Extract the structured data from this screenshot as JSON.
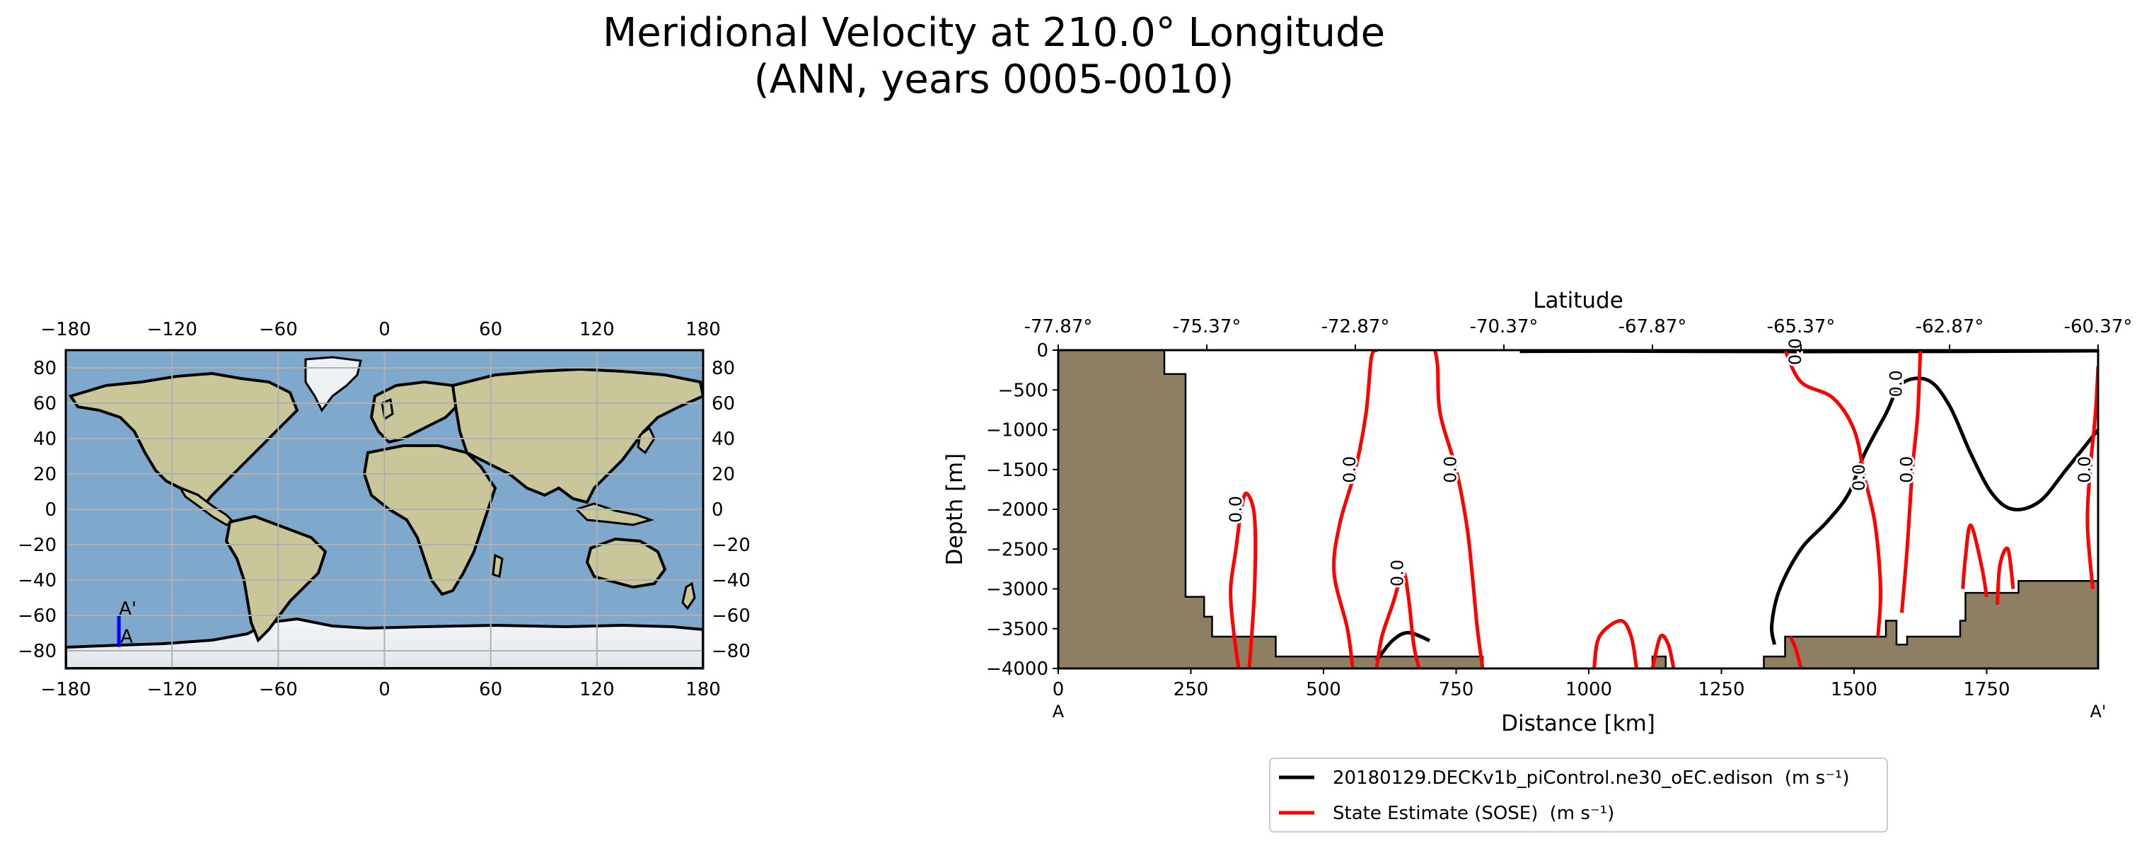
{
  "title_line1": "Meridional Velocity at 210.0° Longitude",
  "title_line2": "(ANN, years 0005-0010)",
  "colors": {
    "ocean": "#7fa9cc",
    "land": "#c9c79a",
    "ice": "#eef2f5",
    "grid": "#b0b0b0",
    "bathymetry": "#8f7f62",
    "model": "#000000",
    "obs": "#ff0000",
    "transect": "#0000ff"
  },
  "chart_data": [
    {
      "type": "map",
      "name": "transect location map",
      "xticks": [
        -180,
        -120,
        -60,
        0,
        60,
        120,
        180
      ],
      "yticks": [
        80,
        60,
        40,
        20,
        0,
        -20,
        -40,
        -60,
        -80
      ],
      "xlim": [
        -180,
        180
      ],
      "ylim": [
        -90,
        90
      ],
      "transect": {
        "start_label": "A",
        "end_label": "A'",
        "lon": -150,
        "lat_start": -77.87,
        "lat_end": -60.37
      }
    },
    {
      "type": "contour",
      "name": "vertical section",
      "xlabel": "Distance [km]",
      "ylabel": "Depth [m]",
      "top_label": "Latitude",
      "xlim": [
        0,
        1960
      ],
      "ylim": [
        -4000,
        0
      ],
      "xticks": [
        0,
        250,
        500,
        750,
        1000,
        1250,
        1500,
        1750
      ],
      "yticks": [
        0,
        -500,
        -1000,
        -1500,
        -2000,
        -2500,
        -3000,
        -3500,
        -4000
      ],
      "top_ticks": [
        {
          "x": 0,
          "label": "-77.87°"
        },
        {
          "x": 280,
          "label": "-75.37°"
        },
        {
          "x": 560,
          "label": "-72.87°"
        },
        {
          "x": 840,
          "label": "-70.37°"
        },
        {
          "x": 1120,
          "label": "-67.87°"
        },
        {
          "x": 1400,
          "label": "-65.37°"
        },
        {
          "x": 1680,
          "label": "-62.87°"
        },
        {
          "x": 1960,
          "label": "-60.37°"
        }
      ],
      "start_label": "A",
      "end_label": "A'",
      "bathymetry": [
        [
          0,
          0
        ],
        [
          200,
          0
        ],
        [
          200,
          -300
        ],
        [
          240,
          -300
        ],
        [
          240,
          -3100
        ],
        [
          275,
          -3100
        ],
        [
          275,
          -3350
        ],
        [
          290,
          -3350
        ],
        [
          290,
          -3600
        ],
        [
          410,
          -3600
        ],
        [
          410,
          -3850
        ],
        [
          800,
          -3850
        ],
        [
          800,
          -4000
        ],
        [
          1120,
          -4000
        ],
        [
          1120,
          -3850
        ],
        [
          1145,
          -3850
        ],
        [
          1145,
          -4000
        ],
        [
          1330,
          -4000
        ],
        [
          1330,
          -3850
        ],
        [
          1370,
          -3850
        ],
        [
          1370,
          -3600
        ],
        [
          1560,
          -3600
        ],
        [
          1560,
          -3400
        ],
        [
          1580,
          -3400
        ],
        [
          1580,
          -3700
        ],
        [
          1600,
          -3700
        ],
        [
          1600,
          -3600
        ],
        [
          1700,
          -3600
        ],
        [
          1700,
          -3400
        ],
        [
          1710,
          -3400
        ],
        [
          1710,
          -3050
        ],
        [
          1810,
          -3050
        ],
        [
          1810,
          -2900
        ],
        [
          1960,
          -2900
        ],
        [
          1960,
          -4000
        ],
        [
          0,
          -4000
        ]
      ],
      "contours": [
        {
          "series": "model",
          "label": "0.0",
          "points": [
            [
              870,
              -15
            ],
            [
              1050,
              -12
            ],
            [
              1400,
              -18
            ],
            [
              1700,
              -15
            ],
            [
              1960,
              -8
            ]
          ]
        },
        {
          "series": "model",
          "label": "0.0",
          "points": [
            [
              1350,
              -3700
            ],
            [
              1345,
              -3450
            ],
            [
              1360,
              -3000
            ],
            [
              1400,
              -2500
            ],
            [
              1450,
              -2150
            ],
            [
              1490,
              -1800
            ],
            [
              1520,
              -1300
            ],
            [
              1560,
              -800
            ],
            [
              1590,
              -420
            ],
            [
              1640,
              -380
            ],
            [
              1680,
              -700
            ],
            [
              1720,
              -1300
            ],
            [
              1760,
              -1800
            ],
            [
              1800,
              -2000
            ],
            [
              1850,
              -1900
            ],
            [
              1900,
              -1500
            ],
            [
              1960,
              -1000
            ]
          ]
        },
        {
          "series": "model",
          "label": "",
          "points": [
            [
              600,
              -3900
            ],
            [
              630,
              -3650
            ],
            [
              660,
              -3550
            ],
            [
              700,
              -3650
            ]
          ]
        },
        {
          "series": "obs",
          "label": "0.0",
          "points": [
            [
              555,
              -4000
            ],
            [
              545,
              -3500
            ],
            [
              520,
              -2800
            ],
            [
              530,
              -2200
            ],
            [
              560,
              -1500
            ],
            [
              580,
              -800
            ],
            [
              590,
              -100
            ],
            [
              600,
              0
            ]
          ]
        },
        {
          "series": "obs",
          "label": "0.0",
          "points": [
            [
              800,
              -4000
            ],
            [
              790,
              -3500
            ],
            [
              780,
              -2800
            ],
            [
              770,
              -2200
            ],
            [
              750,
              -1500
            ],
            [
              720,
              -800
            ],
            [
              715,
              -200
            ],
            [
              710,
              0
            ]
          ]
        },
        {
          "series": "obs",
          "label": "0.0",
          "points": [
            [
              340,
              -4000
            ],
            [
              330,
              -3500
            ],
            [
              325,
              -3000
            ],
            [
              335,
              -2500
            ],
            [
              345,
              -2000
            ],
            [
              355,
              -1800
            ],
            [
              370,
              -2100
            ],
            [
              370,
              -3000
            ],
            [
              360,
              -4000
            ]
          ]
        },
        {
          "series": "obs",
          "label": "0.0",
          "points": [
            [
              600,
              -4000
            ],
            [
              610,
              -3600
            ],
            [
              630,
              -3200
            ],
            [
              650,
              -2800
            ],
            [
              660,
              -3100
            ],
            [
              670,
              -3700
            ],
            [
              680,
              -4000
            ]
          ]
        },
        {
          "series": "obs",
          "label": "0.0",
          "points": [
            [
              1590,
              -3300
            ],
            [
              1600,
              -2500
            ],
            [
              1610,
              -1500
            ],
            [
              1620,
              -800
            ],
            [
              1625,
              0
            ]
          ]
        },
        {
          "series": "obs",
          "label": "0.0",
          "points": [
            [
              1370,
              0
            ],
            [
              1400,
              -400
            ],
            [
              1460,
              -600
            ],
            [
              1500,
              -1000
            ],
            [
              1520,
              -1600
            ],
            [
              1540,
              -2200
            ],
            [
              1550,
              -3000
            ],
            [
              1545,
              -3600
            ]
          ]
        },
        {
          "series": "obs",
          "label": "0.0",
          "points": [
            [
              1950,
              -3000
            ],
            [
              1940,
              -2200
            ],
            [
              1945,
              -1500
            ],
            [
              1955,
              -800
            ],
            [
              1960,
              -200
            ]
          ]
        },
        {
          "series": "obs",
          "label": "",
          "points": [
            [
              1705,
              -3000
            ],
            [
              1710,
              -2600
            ],
            [
              1720,
              -2200
            ],
            [
              1740,
              -2700
            ],
            [
              1750,
              -3100
            ]
          ]
        },
        {
          "series": "obs",
          "label": "",
          "points": [
            [
              1770,
              -3200
            ],
            [
              1775,
              -2700
            ],
            [
              1790,
              -2500
            ],
            [
              1800,
              -3000
            ]
          ]
        },
        {
          "series": "obs",
          "label": "",
          "points": [
            [
              1010,
              -4000
            ],
            [
              1020,
              -3600
            ],
            [
              1060,
              -3400
            ],
            [
              1080,
              -3600
            ],
            [
              1090,
              -4000
            ]
          ]
        },
        {
          "series": "obs",
          "label": "",
          "points": [
            [
              1120,
              -4000
            ],
            [
              1135,
              -3600
            ],
            [
              1150,
              -3700
            ],
            [
              1160,
              -4000
            ]
          ]
        },
        {
          "series": "obs",
          "label": "",
          "points": [
            [
              1400,
              -4000
            ],
            [
              1390,
              -3750
            ],
            [
              1380,
              -3600
            ]
          ]
        }
      ],
      "legend": [
        {
          "series": "model",
          "label": "20180129.DECKv1b_piControl.ne30_oEC.edison",
          "units": "(m s⁻¹)"
        },
        {
          "series": "obs",
          "label": "State Estimate (SOSE)",
          "units": "(m s⁻¹)"
        }
      ]
    }
  ]
}
